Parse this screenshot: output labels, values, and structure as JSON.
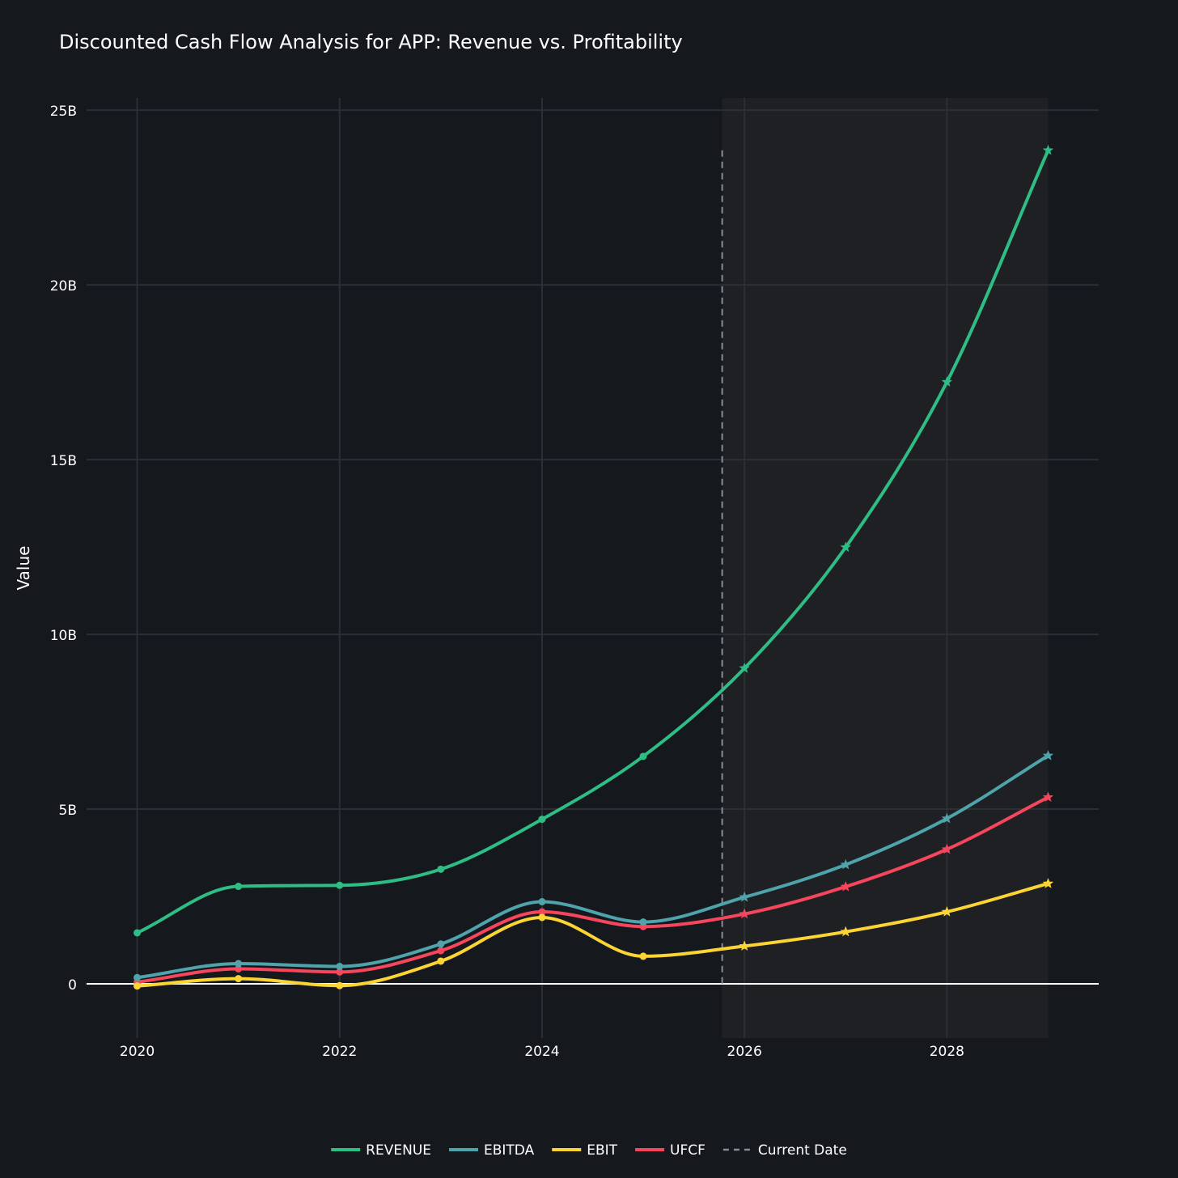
{
  "chart_data": {
    "type": "line",
    "title": "Discounted Cash Flow Analysis for APP: Revenue vs. Profitability",
    "xlabel": "",
    "ylabel": "Value",
    "x": [
      2020,
      2021,
      2022,
      2023,
      2024,
      2025,
      2026,
      2027,
      2028,
      2029
    ],
    "xlim": [
      2019.5,
      2029.5
    ],
    "ylim": [
      -1.55,
      25.35
    ],
    "x_ticks": [
      {
        "value": 2020,
        "label": "2020"
      },
      {
        "value": 2022,
        "label": "2022"
      },
      {
        "value": 2024,
        "label": "2024"
      },
      {
        "value": 2026,
        "label": "2026"
      },
      {
        "value": 2028,
        "label": "2028"
      }
    ],
    "y_ticks": [
      {
        "value": 0,
        "label": "0"
      },
      {
        "value": 5,
        "label": "5B"
      },
      {
        "value": 10,
        "label": "10B"
      },
      {
        "value": 15,
        "label": "15B"
      },
      {
        "value": 20,
        "label": "20B"
      },
      {
        "value": 25,
        "label": "25B"
      }
    ],
    "units": "billions",
    "grid": true,
    "forecast_start": 2025.78,
    "forecast_end": 2029,
    "forecast_first_index": 6,
    "current_date": {
      "name": "Current Date",
      "x": 2025.78,
      "y_top": 23.85,
      "color": "#888c94"
    },
    "series": [
      {
        "name": "REVENUE",
        "color": "#2ebd85",
        "values": [
          1.46,
          2.79,
          2.82,
          3.28,
          4.71,
          6.51,
          9.03,
          12.49,
          17.22,
          23.85
        ]
      },
      {
        "name": "EBITDA",
        "color": "#4fa3ab",
        "values": [
          0.18,
          0.58,
          0.5,
          1.14,
          2.35,
          1.77,
          2.48,
          3.41,
          4.73,
          6.53
        ]
      },
      {
        "name": "EBIT",
        "color": "#fcd535",
        "values": [
          -0.06,
          0.15,
          -0.05,
          0.65,
          1.9,
          0.79,
          1.08,
          1.49,
          2.06,
          2.87
        ]
      },
      {
        "name": "UFCF",
        "color": "#f6465d",
        "values": [
          0.05,
          0.43,
          0.34,
          0.95,
          2.06,
          1.64,
          2.0,
          2.78,
          3.85,
          5.34
        ]
      }
    ],
    "legend_position": "bottom-center"
  },
  "colors": {
    "background": "#15181d",
    "forecast_band": "#1e2024",
    "grid": "#2b2f36",
    "zero_line": "#ffffff",
    "text": "#ffffff"
  }
}
